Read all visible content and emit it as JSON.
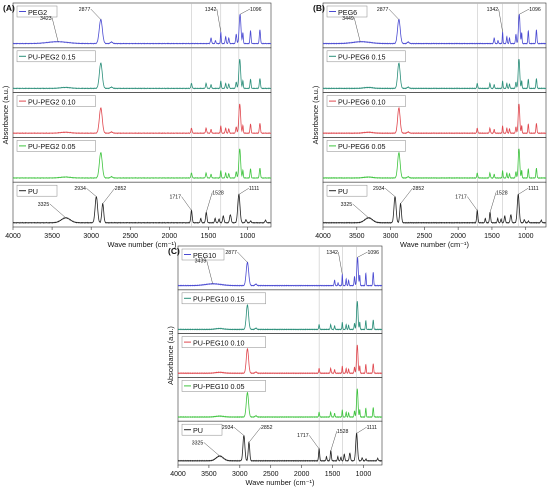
{
  "figure": {
    "y_axis_label": "Absorbance (a.u.)",
    "x_axis_label": "Wave number (cm⁻¹)"
  },
  "chart_data": [
    {
      "panel": "(A)",
      "type": "line",
      "xlim": [
        4000,
        700
      ],
      "x_ticks": [
        4000,
        3500,
        3000,
        2500,
        2000,
        1500,
        1000
      ],
      "grid": false,
      "reference_lines": [
        1717,
        1342,
        1111
      ],
      "subplots": [
        {
          "label": "PEG2",
          "color": "#4b4bd2",
          "family": "peg",
          "peaks": [
            3423,
            2877,
            1342,
            1096
          ],
          "peak_labels": [
            "3423",
            "2877",
            "1342",
            "1096"
          ]
        },
        {
          "label": "PU-PEG2 0.15",
          "color": "#2b8f7a",
          "family": "mix",
          "peaks": [],
          "peak_labels": []
        },
        {
          "label": "PU-PEG2 0.10",
          "color": "#e0484f",
          "family": "mix",
          "peaks": [],
          "peak_labels": []
        },
        {
          "label": "PU-PEG2 0.05",
          "color": "#3fc43f",
          "family": "mix",
          "peaks": [],
          "peak_labels": []
        },
        {
          "label": "PU",
          "color": "#222222",
          "family": "pu",
          "peaks": [
            3325,
            2934,
            2852,
            1717,
            1528,
            1111
          ],
          "peak_labels": [
            "3325",
            "2934",
            "2852",
            "1717",
            "1528",
            "1111"
          ]
        }
      ]
    },
    {
      "panel": "(B)",
      "type": "line",
      "xlim": [
        4000,
        700
      ],
      "x_ticks": [
        4000,
        3500,
        3000,
        2500,
        2000,
        1500,
        1000
      ],
      "grid": false,
      "reference_lines": [
        1717,
        1342,
        1111
      ],
      "subplots": [
        {
          "label": "PEG6",
          "color": "#4b4bd2",
          "family": "peg",
          "peaks": [
            3449,
            2877,
            1342,
            1096
          ],
          "peak_labels": [
            "3449",
            "2877",
            "1342",
            "1096"
          ]
        },
        {
          "label": "PU-PEG6 0.15",
          "color": "#2b8f7a",
          "family": "mix",
          "peaks": [],
          "peak_labels": []
        },
        {
          "label": "PU-PEG6 0.10",
          "color": "#e0484f",
          "family": "mix",
          "peaks": [],
          "peak_labels": []
        },
        {
          "label": "PU-PEG6 0.05",
          "color": "#3fc43f",
          "family": "mix",
          "peaks": [],
          "peak_labels": []
        },
        {
          "label": "PU",
          "color": "#222222",
          "family": "pu",
          "peaks": [
            3325,
            2934,
            2852,
            1717,
            1528,
            1111
          ],
          "peak_labels": [
            "3325",
            "2934",
            "2852",
            "1717",
            "1528",
            "1111"
          ]
        }
      ]
    },
    {
      "panel": "(C)",
      "type": "line",
      "xlim": [
        4000,
        700
      ],
      "x_ticks": [
        4000,
        3500,
        3000,
        2500,
        2000,
        1500,
        1000
      ],
      "grid": false,
      "reference_lines": [
        1717,
        1342,
        1111
      ],
      "subplots": [
        {
          "label": "PEG10",
          "color": "#4b4bd2",
          "family": "peg",
          "peaks": [
            3439,
            2877,
            1342,
            1096
          ],
          "peak_labels": [
            "3439",
            "2877",
            "1342",
            "1096"
          ]
        },
        {
          "label": "PU-PEG10 0.15",
          "color": "#2b8f7a",
          "family": "mix",
          "peaks": [],
          "peak_labels": []
        },
        {
          "label": "PU-PEG10 0.10",
          "color": "#e0484f",
          "family": "mix",
          "peaks": [],
          "peak_labels": []
        },
        {
          "label": "PU-PEG10 0.05",
          "color": "#3fc43f",
          "family": "mix",
          "peaks": [],
          "peak_labels": []
        },
        {
          "label": "PU",
          "color": "#222222",
          "family": "pu",
          "peaks": [
            3325,
            2934,
            2852,
            1717,
            1528,
            1111
          ],
          "peak_labels": [
            "3325",
            "2934",
            "2852",
            "1717",
            "1528",
            "1111"
          ]
        }
      ]
    }
  ]
}
